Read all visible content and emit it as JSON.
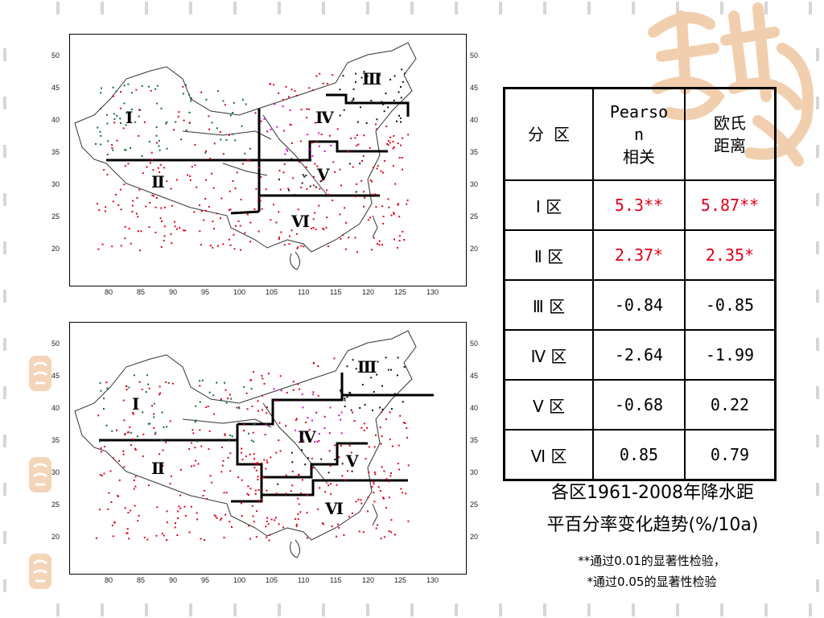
{
  "maps": {
    "top": {
      "y_ticks": [
        "50",
        "45",
        "40",
        "35",
        "30",
        "25",
        "20"
      ],
      "x_ticks": [
        "80",
        "85",
        "90",
        "95",
        "100",
        "105",
        "110",
        "115",
        "120",
        "125",
        "130"
      ],
      "regions": [
        "Ⅰ",
        "Ⅱ",
        "Ⅲ",
        "Ⅳ",
        "Ⅴ",
        "Ⅵ"
      ]
    },
    "bottom": {
      "y_ticks": [
        "50",
        "45",
        "40",
        "35",
        "30",
        "25",
        "20"
      ],
      "x_ticks": [
        "80",
        "85",
        "90",
        "95",
        "100",
        "105",
        "110",
        "115",
        "120",
        "125",
        "130"
      ],
      "regions": [
        "Ⅰ",
        "Ⅱ",
        "Ⅲ",
        "Ⅳ",
        "Ⅴ",
        "Ⅵ"
      ]
    }
  },
  "table": {
    "headers": {
      "zone": "分 区",
      "pearson": [
        "Pearso",
        "n",
        "相关"
      ],
      "euclid": [
        "欧氏",
        "距离"
      ]
    },
    "rows": [
      {
        "zone": "Ⅰ 区",
        "pearson": "5.3**",
        "euclid": "5.87**",
        "highlight": true
      },
      {
        "zone": "Ⅱ 区",
        "pearson": "2.37*",
        "euclid": "2.35*",
        "highlight": true
      },
      {
        "zone": "Ⅲ 区",
        "pearson": "-0.84",
        "euclid": "-0.85",
        "highlight": false
      },
      {
        "zone": "Ⅳ 区",
        "pearson": "-2.64",
        "euclid": "-1.99",
        "highlight": false
      },
      {
        "zone": "Ⅴ 区",
        "pearson": "-0.68",
        "euclid": "0.22",
        "highlight": false
      },
      {
        "zone": "Ⅵ 区",
        "pearson": "0.85",
        "euclid": "0.79",
        "highlight": false
      }
    ]
  },
  "caption": {
    "line1": "各区1961-2008年降水距",
    "line2": "平百分率变化趋势(%/10a)"
  },
  "notes": {
    "line1": "**通过0.01的显著性检验，",
    "line2": "*通过0.05的显著性检验"
  },
  "colors": {
    "significant": "#e0001b",
    "dot_red": "#e0001b",
    "dot_green": "#0b6b3a",
    "dot_magenta": "#e000e0",
    "dot_black": "#111111",
    "deco": "#f4d5b8"
  },
  "icons": [
    "calligraphy-watermark",
    "side-seal"
  ]
}
